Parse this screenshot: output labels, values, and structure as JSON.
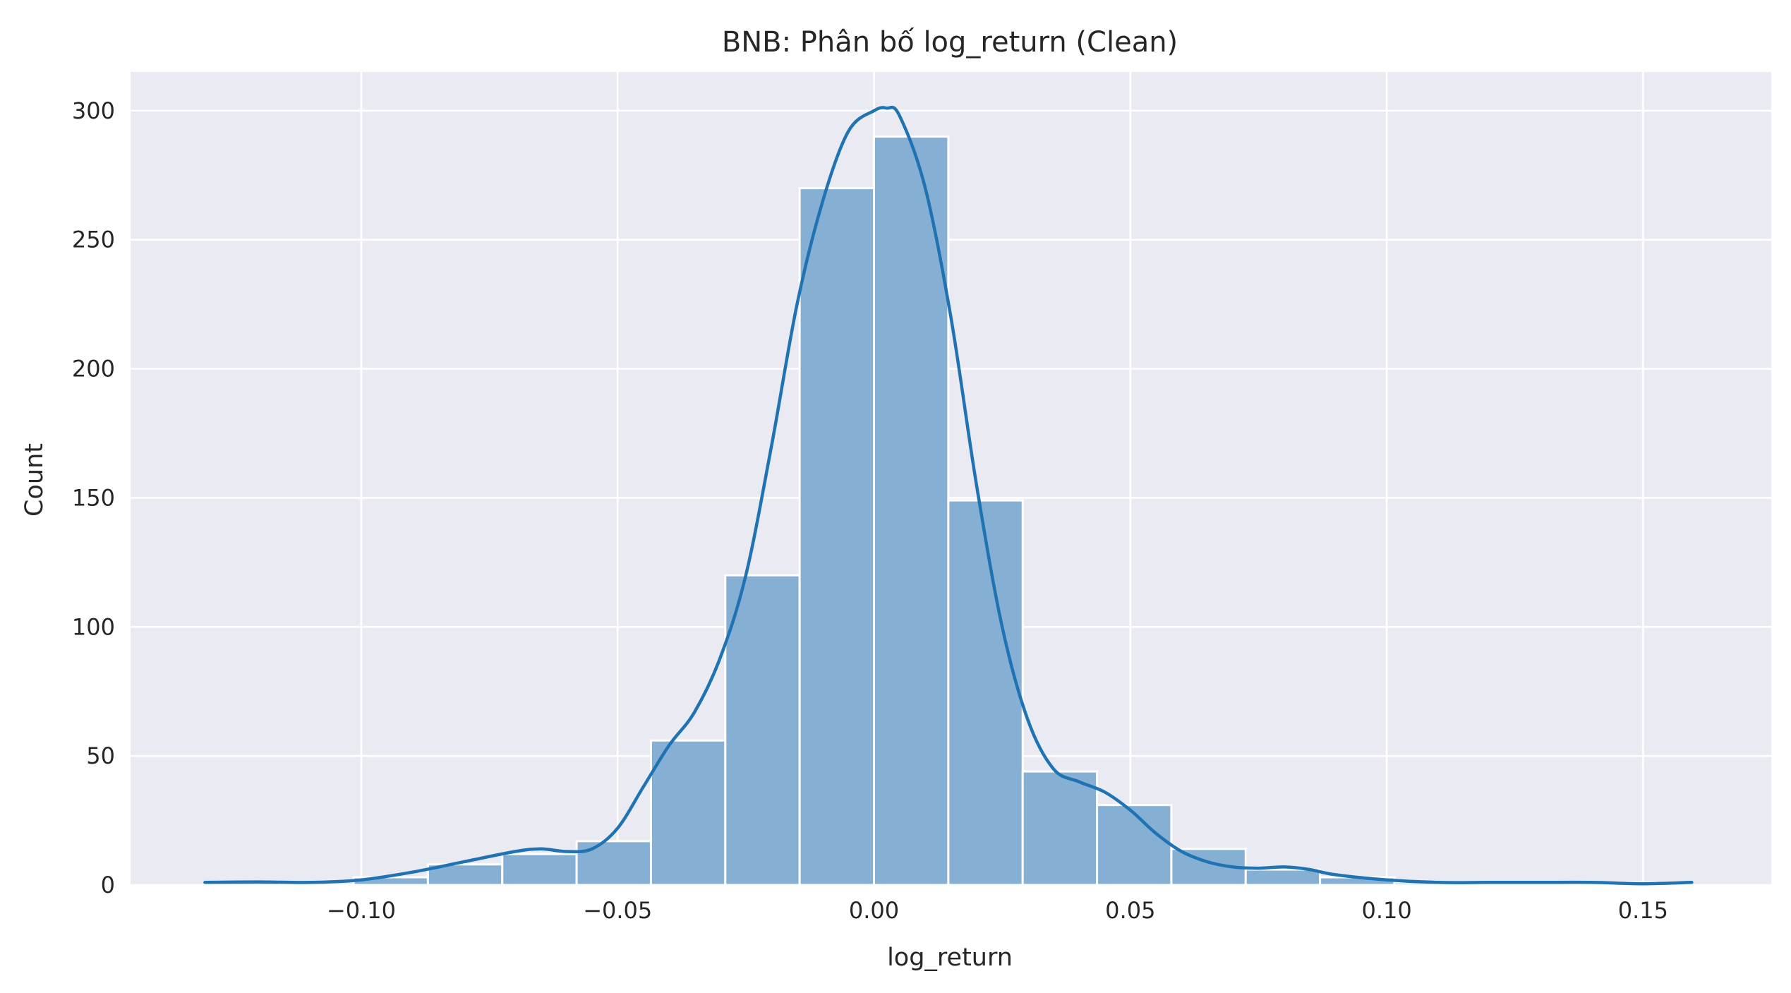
{
  "chart_data": {
    "type": "histogram",
    "title": "BNB: Phân bố log_return (Clean)",
    "xlabel": "log_return",
    "ylabel": "Count",
    "xlim": [
      -0.145,
      0.175
    ],
    "ylim": [
      0,
      315
    ],
    "xticks": [
      -0.1,
      -0.05,
      0.0,
      0.05,
      0.1,
      0.15
    ],
    "xtick_labels": [
      "−0.10",
      "−0.05",
      "0.00",
      "0.05",
      "0.10",
      "0.15"
    ],
    "yticks": [
      0,
      50,
      100,
      150,
      200,
      250,
      300
    ],
    "ytick_labels": [
      "0",
      "50",
      "100",
      "150",
      "200",
      "250",
      "300"
    ],
    "grid": true,
    "colors": {
      "background": "#eaeaf2",
      "bar": "#86b0d3",
      "line": "#2073b2"
    },
    "bins": [
      {
        "x0": -0.1305,
        "x1": -0.116,
        "count": 1
      },
      {
        "x0": -0.116,
        "x1": -0.1015,
        "count": 0
      },
      {
        "x0": -0.1015,
        "x1": -0.087,
        "count": 3
      },
      {
        "x0": -0.087,
        "x1": -0.0725,
        "count": 8
      },
      {
        "x0": -0.0725,
        "x1": -0.058,
        "count": 12
      },
      {
        "x0": -0.058,
        "x1": -0.0435,
        "count": 17
      },
      {
        "x0": -0.0435,
        "x1": -0.029,
        "count": 56
      },
      {
        "x0": -0.029,
        "x1": -0.0145,
        "count": 120
      },
      {
        "x0": -0.0145,
        "x1": 0.0,
        "count": 270
      },
      {
        "x0": 0.0,
        "x1": 0.0145,
        "count": 290
      },
      {
        "x0": 0.0145,
        "x1": 0.029,
        "count": 149
      },
      {
        "x0": 0.029,
        "x1": 0.0435,
        "count": 44
      },
      {
        "x0": 0.0435,
        "x1": 0.058,
        "count": 31
      },
      {
        "x0": 0.058,
        "x1": 0.0725,
        "count": 14
      },
      {
        "x0": 0.0725,
        "x1": 0.087,
        "count": 6
      },
      {
        "x0": 0.087,
        "x1": 0.1015,
        "count": 3
      },
      {
        "x0": 0.1015,
        "x1": 0.116,
        "count": 1
      },
      {
        "x0": 0.116,
        "x1": 0.1305,
        "count": 0
      },
      {
        "x0": 0.1305,
        "x1": 0.145,
        "count": 0
      },
      {
        "x0": 0.145,
        "x1": 0.1595,
        "count": 1
      }
    ],
    "kde": {
      "x": [
        -0.1305,
        -0.12,
        -0.11,
        -0.1,
        -0.09,
        -0.08,
        -0.07,
        -0.065,
        -0.06,
        -0.055,
        -0.05,
        -0.045,
        -0.04,
        -0.035,
        -0.03,
        -0.025,
        -0.02,
        -0.015,
        -0.01,
        -0.005,
        0.0,
        0.0025,
        0.005,
        0.01,
        0.015,
        0.02,
        0.025,
        0.03,
        0.035,
        0.04,
        0.045,
        0.05,
        0.055,
        0.06,
        0.065,
        0.07,
        0.075,
        0.08,
        0.085,
        0.09,
        0.1,
        0.11,
        0.12,
        0.13,
        0.14,
        0.15,
        0.1595
      ],
      "y": [
        1,
        1.2,
        1,
        2,
        5,
        9,
        13,
        14,
        13,
        14,
        22,
        38,
        54,
        67,
        88,
        120,
        170,
        225,
        265,
        292,
        300,
        301,
        298,
        270,
        220,
        155,
        100,
        64,
        45,
        40,
        36,
        29,
        20,
        13,
        9,
        7,
        6.5,
        7,
        6,
        4,
        2,
        1,
        1,
        1,
        1,
        0.5,
        1
      ]
    }
  }
}
